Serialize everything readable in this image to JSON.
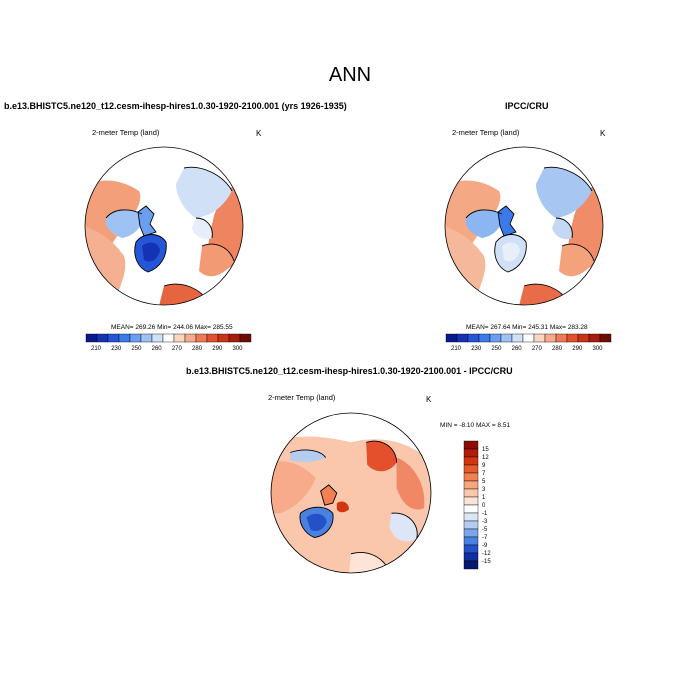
{
  "title": "ANN",
  "panels": [
    {
      "header": "b.e13.BHISTC5.ne120_t12.cesm-ihesp-hires1.0.30-1920-2100.001 (yrs 1926-1935)",
      "variable": "2-meter Temp (land)",
      "unit": "K",
      "stats": "MEAN= 269.26  Min= 244.06  Max= 285.55",
      "colorbar": {
        "labels": [
          "210",
          "230",
          "250",
          "260",
          "270",
          "280",
          "290",
          "300"
        ],
        "colors": [
          "#0a1a8c",
          "#1432b4",
          "#2556d8",
          "#3a7aea",
          "#6a9ef0",
          "#9ec2f4",
          "#cfe0f7",
          "#ffffff",
          "#fbd5c0",
          "#f7ab8a",
          "#f07a55",
          "#e4502c",
          "#cc3316",
          "#a61d0b",
          "#6e0d05"
        ]
      }
    },
    {
      "header": "IPCC/CRU",
      "variable": "2-meter Temp (land)",
      "unit": "K",
      "stats": "MEAN= 267.64  Min= 245.31  Max= 283.28",
      "colorbar": {
        "labels": [
          "210",
          "230",
          "250",
          "260",
          "270",
          "280",
          "290",
          "300"
        ],
        "colors": [
          "#0a1a8c",
          "#1432b4",
          "#2556d8",
          "#3a7aea",
          "#6a9ef0",
          "#9ec2f4",
          "#cfe0f7",
          "#ffffff",
          "#fbd5c0",
          "#f7ab8a",
          "#f07a55",
          "#e4502c",
          "#cc3316",
          "#a61d0b",
          "#6e0d05"
        ]
      }
    },
    {
      "header": "b.e13.BHISTC5.ne120_t12.cesm-ihesp-hires1.0.30-1920-2100.001 - IPCC/CRU",
      "variable": "2-meter Temp (land)",
      "unit": "K",
      "stats": "MIN =  -8.10 MAX =   8.51",
      "colorbar": {
        "labels": [
          "15",
          "12",
          "9",
          "7",
          "5",
          "3",
          "1",
          "0",
          "-1",
          "-3",
          "-5",
          "-7",
          "-9",
          "-12",
          "-15"
        ],
        "colors": [
          "#8c0c04",
          "#b41a08",
          "#d2360f",
          "#e65a2c",
          "#f28052",
          "#f8a67e",
          "#fcc8ac",
          "#fde4d6",
          "#ffffff",
          "#dce6f6",
          "#b4ccf0",
          "#7aa6ea",
          "#4a80e0",
          "#2450c8",
          "#1030a0",
          "#08186e"
        ]
      }
    }
  ]
}
